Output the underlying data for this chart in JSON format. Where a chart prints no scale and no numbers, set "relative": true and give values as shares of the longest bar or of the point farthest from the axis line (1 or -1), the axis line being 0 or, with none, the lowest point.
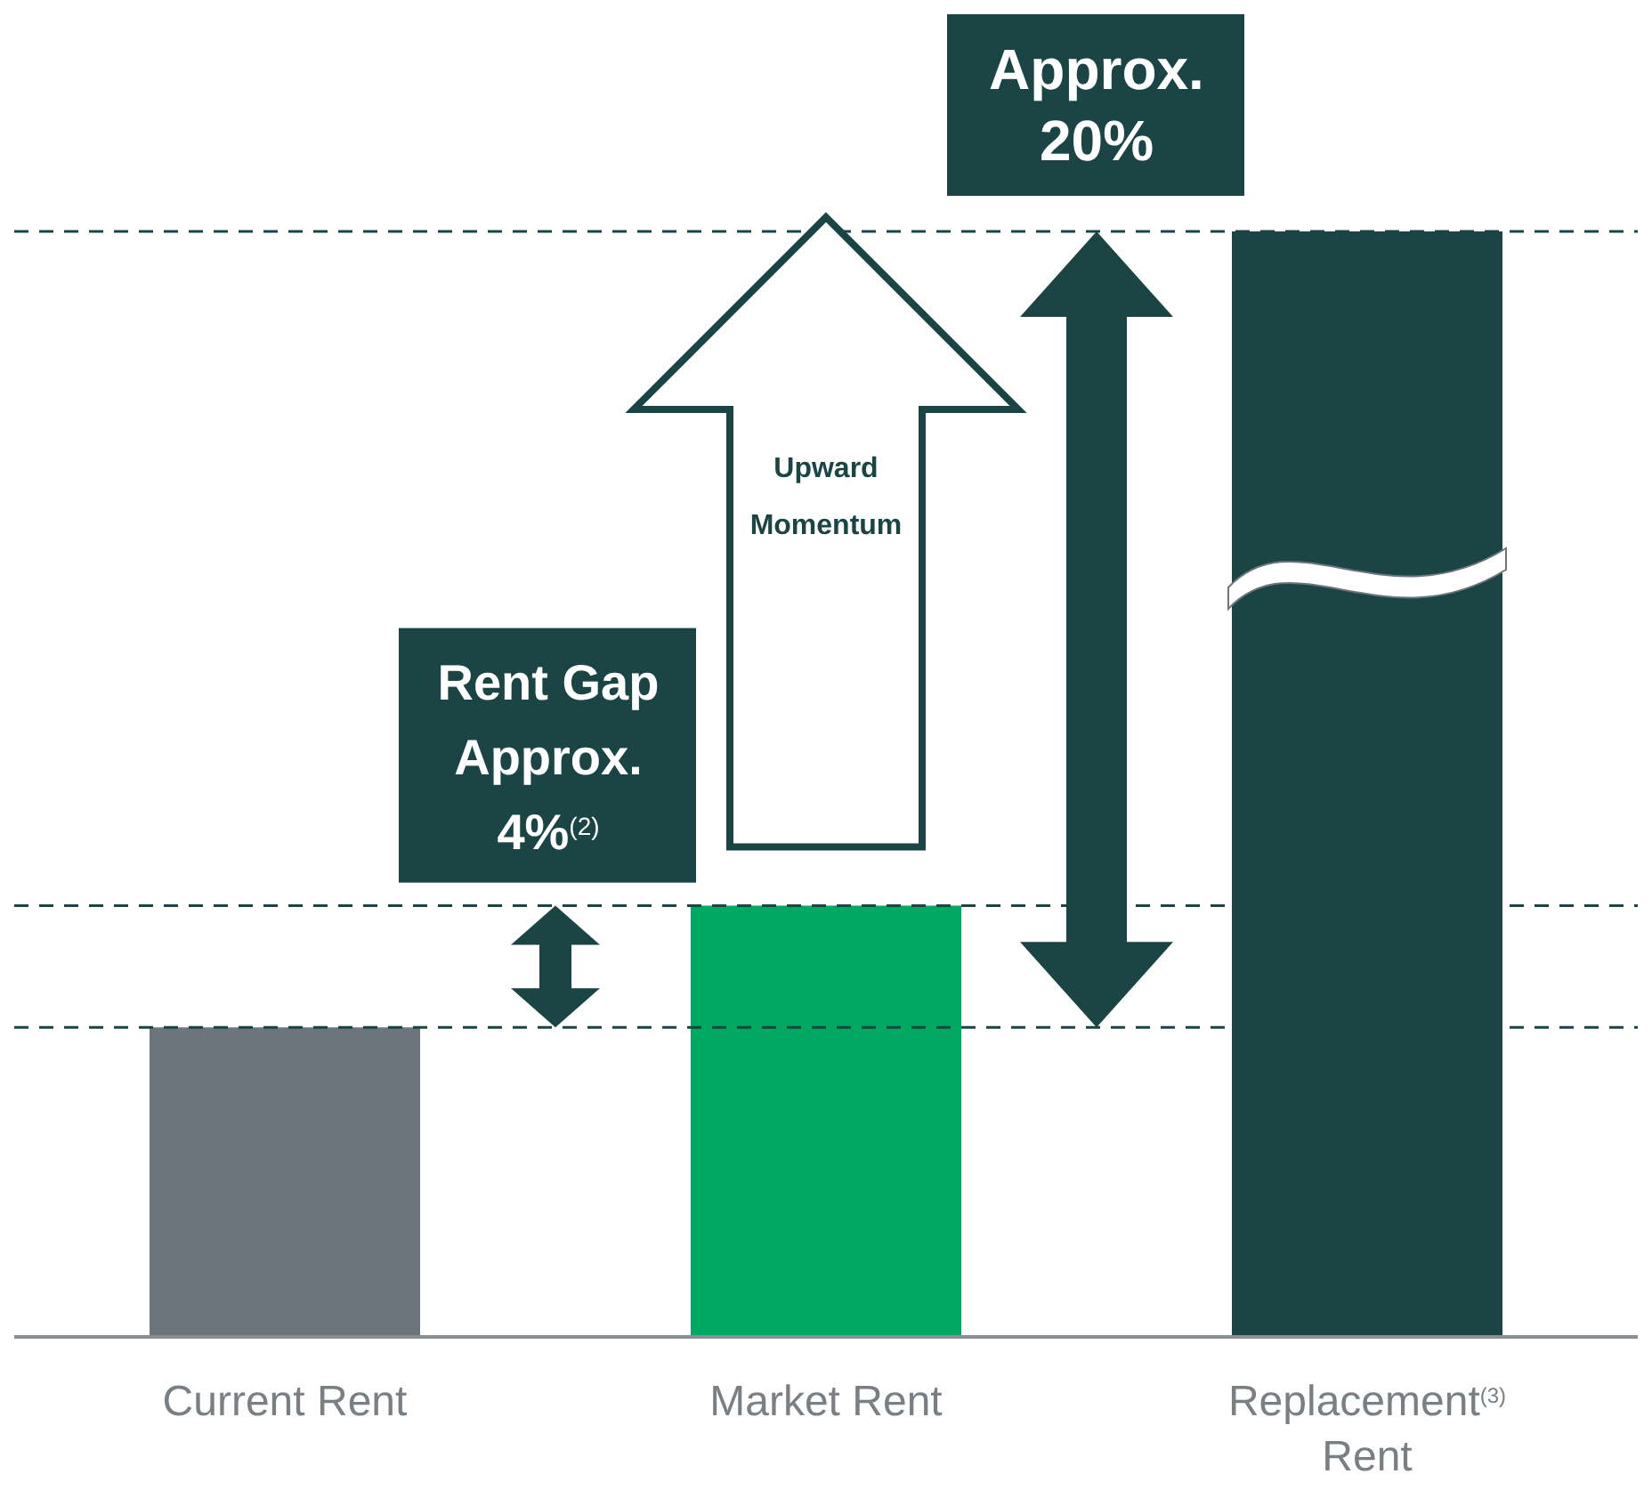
{
  "chart_data": {
    "type": "bar",
    "relative": true,
    "categories": [
      "Current Rent",
      "Market Rent",
      "Replacement$^{(3)}$ Rent"
    ],
    "values": [
      0.28,
      0.39,
      1
    ],
    "colors": [
      "#6c757b",
      "#00a862",
      "#1b4444"
    ],
    "ref_lines": [
      {
        "axis": "y",
        "value": 0.28,
        "color": "#1b4444",
        "line_style": "dashed"
      },
      {
        "axis": "y",
        "value": 0.39,
        "color": "#1b4444",
        "line_style": "dashed"
      },
      {
        "axis": "y",
        "value": 1,
        "color": "#1b4444",
        "line_style": "dashed"
      }
    ],
    "annotations": [
      "Rent Gap Approx. 4%$^{(2)}$",
      "Upward Momentum",
      "Approx. 20%"
    ]
  }
}
